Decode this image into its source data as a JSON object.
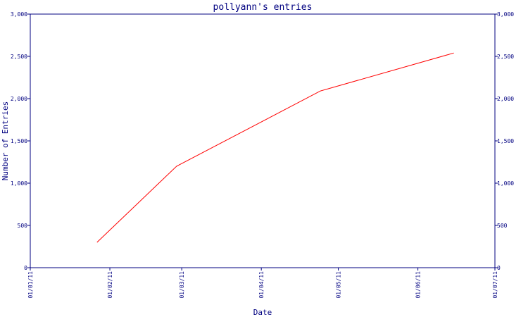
{
  "chart_data": {
    "type": "line",
    "title": "pollyann's entries",
    "xlabel": "Date",
    "ylabel": "Number of Entries",
    "x_tick_labels": [
      "01/01/11",
      "01/02/11",
      "01/03/11",
      "01/04/11",
      "01/05/11",
      "01/06/11",
      "01/07/11"
    ],
    "x_ticks": [
      "2011-01-01",
      "2011-02-01",
      "2011-03-01",
      "2011-04-01",
      "2011-05-01",
      "2011-06-01",
      "2011-07-01"
    ],
    "y_ticks": [
      0,
      500,
      1000,
      1500,
      2000,
      2500,
      3000
    ],
    "y_tick_labels": [
      "0",
      "500",
      "1,000",
      "1,500",
      "2,000",
      "2,500",
      "3,000"
    ],
    "xlim": [
      "2011-01-01",
      "2011-07-01"
    ],
    "ylim": [
      0,
      3000
    ],
    "grid": false,
    "series": [
      {
        "color": "#ff0000",
        "points": [
          {
            "x": "2011-01-27",
            "y": 300
          },
          {
            "x": "2011-02-27",
            "y": 1200
          },
          {
            "x": "2011-04-24",
            "y": 2090
          },
          {
            "x": "2011-06-15",
            "y": 2540
          }
        ]
      }
    ],
    "axis_color": "#000080"
  }
}
